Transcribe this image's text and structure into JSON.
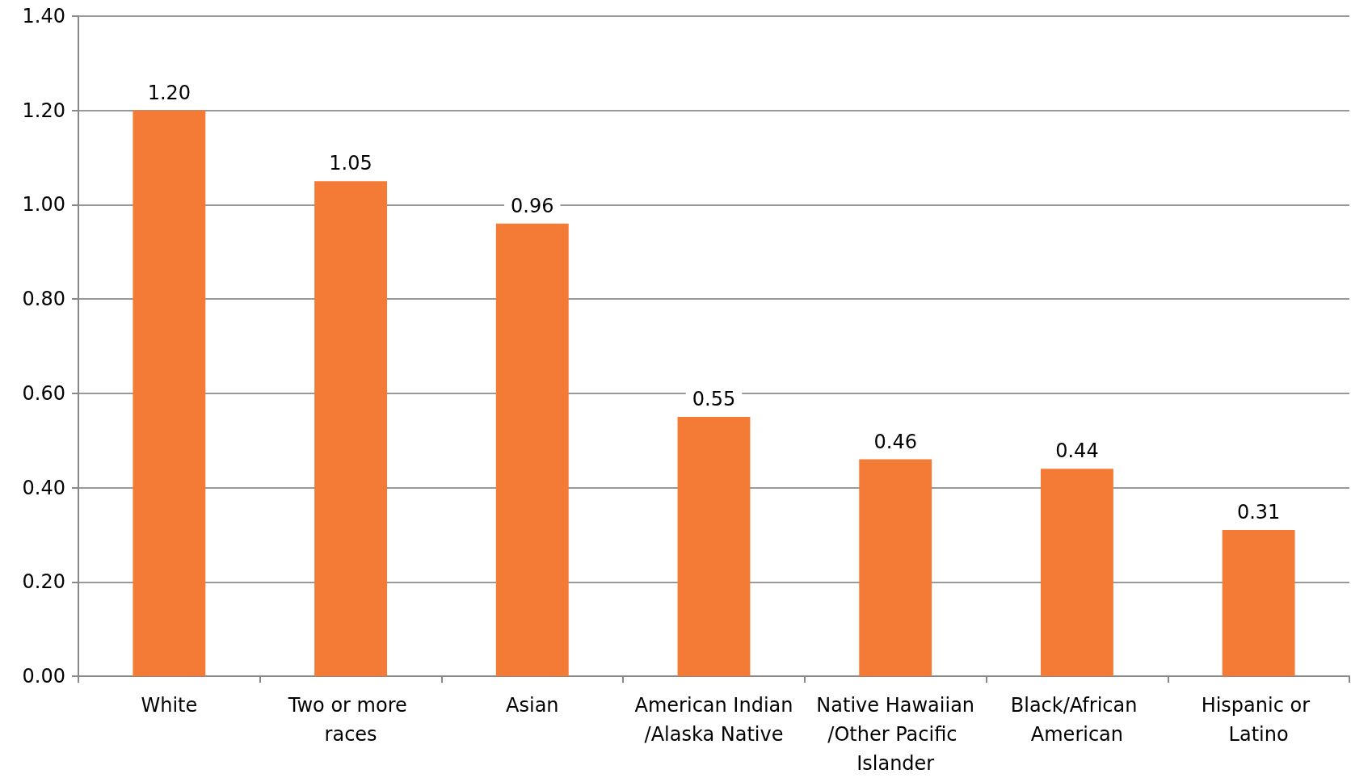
{
  "chart_data": {
    "type": "bar",
    "categories": [
      "White",
      "Two or more races",
      "Asian",
      "American Indian/Alaska Native",
      "Native Hawaiian/Other Pacific Islander",
      "Black/African American",
      "Hispanic or Latino"
    ],
    "values": [
      1.2,
      1.05,
      0.96,
      0.55,
      0.46,
      0.44,
      0.31
    ],
    "value_labels": [
      "1.20",
      "1.05",
      "0.96",
      "0.55",
      "0.46",
      "0.44",
      "0.31"
    ],
    "color": "#f47b35",
    "ylim": [
      0,
      1.4
    ],
    "yticks": [
      {
        "value": 0,
        "label": "0.00"
      },
      {
        "value": 0.2,
        "label": "0.20"
      },
      {
        "value": 0.4,
        "label": "0.40"
      },
      {
        "value": 0.6,
        "label": "0.60"
      },
      {
        "value": 0.8,
        "label": "0.80"
      },
      {
        "value": 1,
        "label": "1.00"
      },
      {
        "value": 1.2,
        "label": "1.20"
      },
      {
        "value": 1.4,
        "label": "1.40"
      }
    ],
    "grid": "y"
  }
}
